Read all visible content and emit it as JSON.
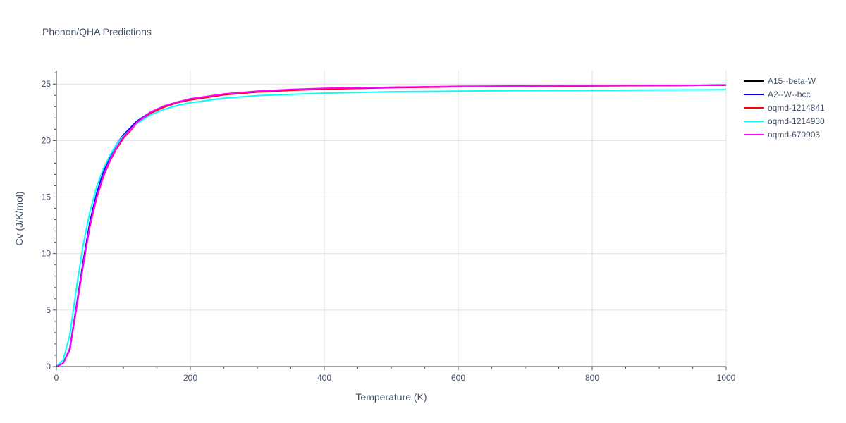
{
  "chart_data": {
    "type": "line",
    "title": "Phonon/QHA Predictions",
    "xlabel": "Temperature (K)",
    "ylabel": "Cv (J/K/mol)",
    "xlim": [
      0,
      1000
    ],
    "ylim": [
      0,
      26.2
    ],
    "x_ticks": [
      0,
      200,
      400,
      600,
      800,
      1000
    ],
    "y_ticks": [
      0,
      5,
      10,
      15,
      20,
      25
    ],
    "grid": true,
    "legend_position": "top-right",
    "x": [
      0,
      10,
      20,
      30,
      40,
      50,
      60,
      70,
      80,
      90,
      100,
      120,
      140,
      160,
      180,
      200,
      250,
      300,
      350,
      400,
      500,
      600,
      700,
      800,
      900,
      1000
    ],
    "series": [
      {
        "name": "A15--beta-W",
        "color": "#000000",
        "values": [
          0,
          0.3,
          1.5,
          5.2,
          9.0,
          12.5,
          15.0,
          16.9,
          18.3,
          19.4,
          20.3,
          21.5,
          22.4,
          22.95,
          23.35,
          23.65,
          24.1,
          24.35,
          24.5,
          24.6,
          24.7,
          24.78,
          24.82,
          24.85,
          24.87,
          24.9
        ]
      },
      {
        "name": "A2--W--bcc",
        "color": "#0000ff",
        "values": [
          0,
          0.3,
          1.6,
          5.4,
          9.3,
          12.8,
          15.3,
          17.2,
          18.6,
          19.7,
          20.5,
          21.7,
          22.5,
          23.0,
          23.4,
          23.65,
          24.1,
          24.35,
          24.5,
          24.6,
          24.7,
          24.78,
          24.82,
          24.85,
          24.87,
          24.9
        ]
      },
      {
        "name": "oqmd-1214841",
        "color": "#ff0000",
        "values": [
          0,
          0.3,
          1.5,
          5.2,
          9.0,
          12.4,
          14.9,
          16.8,
          18.2,
          19.3,
          20.2,
          21.5,
          22.4,
          22.95,
          23.35,
          23.6,
          24.05,
          24.3,
          24.45,
          24.55,
          24.68,
          24.76,
          24.8,
          24.84,
          24.86,
          24.9
        ]
      },
      {
        "name": "oqmd-1214930",
        "color": "#00ffff",
        "values": [
          0,
          0.6,
          2.8,
          7.0,
          10.8,
          13.7,
          15.9,
          17.5,
          18.7,
          19.7,
          20.4,
          21.5,
          22.25,
          22.75,
          23.1,
          23.35,
          23.75,
          23.98,
          24.1,
          24.2,
          24.32,
          24.38,
          24.42,
          24.45,
          24.48,
          24.5
        ]
      },
      {
        "name": "oqmd-670903",
        "color": "#ff00ff",
        "values": [
          0,
          0.3,
          1.5,
          5.2,
          9.0,
          12.5,
          15.0,
          16.9,
          18.3,
          19.4,
          20.3,
          21.6,
          22.5,
          23.05,
          23.4,
          23.7,
          24.12,
          24.37,
          24.52,
          24.62,
          24.72,
          24.8,
          24.83,
          24.86,
          24.88,
          24.9
        ]
      }
    ]
  }
}
